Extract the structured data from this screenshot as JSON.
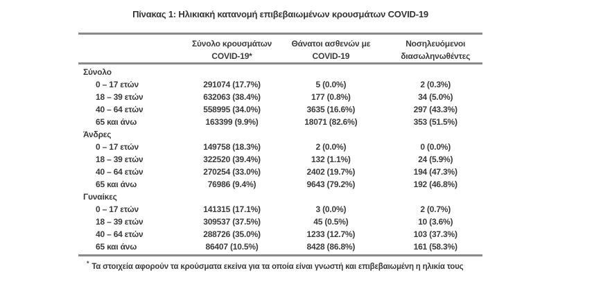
{
  "title": "Πίνακας 1: Ηλικιακή κατανομή επιβεβαιωμένων κρουσμάτων COVID-19",
  "colors": {
    "text": "#3a3a3a",
    "rule": "#8a8a8a",
    "background": "#ffffff"
  },
  "table": {
    "headers": [
      {
        "line1": "Σύνολο κρουσμάτων",
        "line2": "COVID-19*"
      },
      {
        "line1": "Θάνατοι ασθενών με",
        "line2": "COVID-19"
      },
      {
        "line1": "Νοσηλευόμενοι",
        "line2": "διασωληνωθέντες"
      }
    ],
    "sections": [
      {
        "label": "Σύνολο",
        "rows": [
          {
            "age": "0 – 17 ετών",
            "cases": "291074 (17.7%)",
            "deaths": "5 (0.0%)",
            "intubated": "2 (0.3%)"
          },
          {
            "age": "18 – 39 ετών",
            "cases": "632063 (38.4%)",
            "deaths": "177 (0.8%)",
            "intubated": "34 (5.0%)"
          },
          {
            "age": "40 – 64 ετών",
            "cases": "558995 (34.0%)",
            "deaths": "3635 (16.6%)",
            "intubated": "297 (43.3%)"
          },
          {
            "age": "65 και άνω",
            "cases": "163399 (9.9%)",
            "deaths": "18071 (82.6%)",
            "intubated": "353 (51.5%)"
          }
        ]
      },
      {
        "label": "Άνδρες",
        "rows": [
          {
            "age": "0 – 17 ετών",
            "cases": "149758 (18.3%)",
            "deaths": "2 (0.0%)",
            "intubated": "0 (0.0%)"
          },
          {
            "age": "18 – 39 ετών",
            "cases": "322520 (39.4%)",
            "deaths": "132 (1.1%)",
            "intubated": "24 (5.9%)"
          },
          {
            "age": "40 – 64 ετών",
            "cases": "270254 (33.0%)",
            "deaths": "2402 (19.7%)",
            "intubated": "194 (47.3%)"
          },
          {
            "age": "65 και άνω",
            "cases": "76986 (9.4%)",
            "deaths": "9643 (79.2%)",
            "intubated": "192 (46.8%)"
          }
        ]
      },
      {
        "label": "Γυναίκες",
        "rows": [
          {
            "age": "0 – 17 ετών",
            "cases": "141315 (17.1%)",
            "deaths": "3 (0.0%)",
            "intubated": "2 (0.7%)"
          },
          {
            "age": "18 – 39 ετών",
            "cases": "309537 (37.5%)",
            "deaths": "45 (0.5%)",
            "intubated": "10 (3.6%)"
          },
          {
            "age": "40 – 64 ετών",
            "cases": "288726 (35.0%)",
            "deaths": "1233 (12.7%)",
            "intubated": "103 (37.3%)"
          },
          {
            "age": "65 και άνω",
            "cases": "86407 (10.5%)",
            "deaths": "8428 (86.8%)",
            "intubated": "161 (58.3%)"
          }
        ]
      }
    ]
  },
  "footnote": {
    "marker": "*",
    "text": "Τα στοιχεία αφορούν τα κρούσματα εκείνα για τα οποία είναι γνωστή και επιβεβαιωμένη η ηλικία τους"
  }
}
